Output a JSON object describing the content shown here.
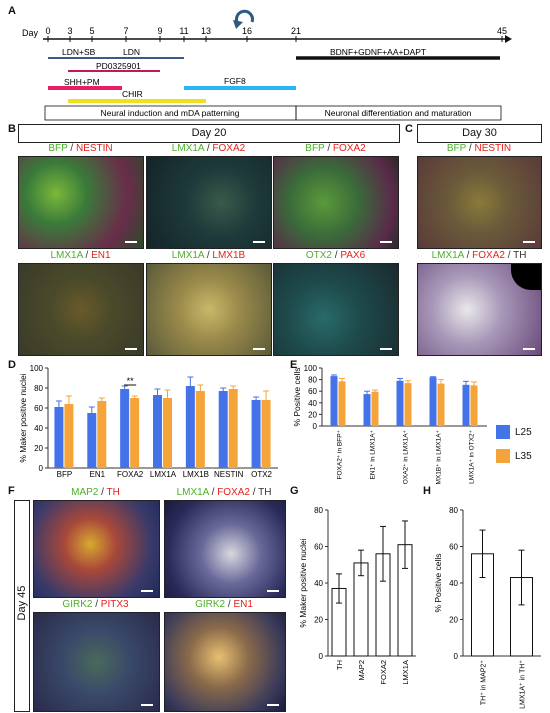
{
  "panel_letters": [
    "A",
    "B",
    "C",
    "D",
    "E",
    "F",
    "G",
    "H"
  ],
  "timeline": {
    "day_label": "Day",
    "days": [
      "0",
      "3",
      "5",
      "7",
      "9",
      "11",
      "13",
      "16",
      "21",
      "45"
    ],
    "bars": [
      {
        "label": "LDN+SB",
        "color": "#3a5a8a"
      },
      {
        "label": "LDN",
        "color": "#3a5a8a"
      },
      {
        "label": "PD0325901",
        "color": "#c2185b"
      },
      {
        "label": "SHH+PM",
        "color": "#e91e63"
      },
      {
        "label": "CHIR",
        "color": "#f0e020"
      },
      {
        "label": "FGF8",
        "color": "#29b6f6"
      },
      {
        "label": "BDNF+GDNF+AA+DAPT",
        "color": "#111111"
      }
    ],
    "phase1": "Neural induction and mDA patterning",
    "phase2": "Neuronal differentiation and maturation"
  },
  "panel_b": {
    "header": "Day 20",
    "images": [
      {
        "parts": [
          {
            "t": "BFP",
            "c": "g"
          },
          {
            "t": " / ",
            "c": "k"
          },
          {
            "t": "NESTIN",
            "c": "r"
          }
        ]
      },
      {
        "parts": [
          {
            "t": "LMX1A",
            "c": "g"
          },
          {
            "t": " / ",
            "c": "k"
          },
          {
            "t": "FOXA2",
            "c": "r"
          }
        ]
      },
      {
        "parts": [
          {
            "t": "BFP",
            "c": "g"
          },
          {
            "t": " / ",
            "c": "k"
          },
          {
            "t": "FOXA2",
            "c": "r"
          }
        ]
      },
      {
        "parts": [
          {
            "t": "LMX1A",
            "c": "g"
          },
          {
            "t": " / ",
            "c": "k"
          },
          {
            "t": "EN1",
            "c": "r"
          }
        ]
      },
      {
        "parts": [
          {
            "t": "LMX1A",
            "c": "g"
          },
          {
            "t": " / ",
            "c": "k"
          },
          {
            "t": "LMX1B",
            "c": "r"
          }
        ]
      },
      {
        "parts": [
          {
            "t": "OTX2",
            "c": "g"
          },
          {
            "t": " / ",
            "c": "k"
          },
          {
            "t": "PAX6",
            "c": "r"
          }
        ]
      }
    ]
  },
  "panel_c": {
    "header": "Day 30",
    "images": [
      {
        "parts": [
          {
            "t": "BFP",
            "c": "g"
          },
          {
            "t": " / ",
            "c": "k"
          },
          {
            "t": "NESTIN",
            "c": "r"
          }
        ]
      },
      {
        "parts": [
          {
            "t": "LMX1A",
            "c": "g"
          },
          {
            "t": " / ",
            "c": "k"
          },
          {
            "t": "FOXA2",
            "c": "r"
          },
          {
            "t": " / TH",
            "c": "k"
          }
        ]
      }
    ]
  },
  "panel_f": {
    "side_label": "Day 45",
    "images": [
      {
        "parts": [
          {
            "t": "MAP2",
            "c": "g"
          },
          {
            "t": " / ",
            "c": "k"
          },
          {
            "t": "TH",
            "c": "r"
          }
        ]
      },
      {
        "parts": [
          {
            "t": "LMX1A",
            "c": "g"
          },
          {
            "t": " / ",
            "c": "k"
          },
          {
            "t": "FOXA2",
            "c": "r"
          },
          {
            "t": " / TH",
            "c": "k"
          }
        ]
      },
      {
        "parts": [
          {
            "t": "GIRK2",
            "c": "g"
          },
          {
            "t": " / ",
            "c": "k"
          },
          {
            "t": "PITX3",
            "c": "r"
          }
        ]
      },
      {
        "parts": [
          {
            "t": "GIRK2",
            "c": "g"
          },
          {
            "t": " / ",
            "c": "k"
          },
          {
            "t": "EN1",
            "c": "r"
          }
        ]
      }
    ]
  },
  "legend": [
    {
      "name": "L25",
      "color": "#4472e8"
    },
    {
      "name": "L35",
      "color": "#f5a43a"
    }
  ],
  "chart_data": [
    {
      "id": "D",
      "type": "bar",
      "ylabel": "% Maker positive nuclei",
      "ylim": [
        0,
        100
      ],
      "yticks": [
        "0",
        "20",
        "40",
        "60",
        "80",
        "100"
      ],
      "categories": [
        "BFP",
        "EN1",
        "FOXA2",
        "LMX1A",
        "LMX1B",
        "NESTIN",
        "OTX2"
      ],
      "series": [
        {
          "name": "L25",
          "values": [
            61,
            55,
            79,
            73,
            82,
            77,
            68
          ],
          "err": [
            6,
            6,
            3,
            6,
            9,
            3,
            3
          ]
        },
        {
          "name": "L35",
          "values": [
            64,
            67,
            70,
            70,
            77,
            79,
            68
          ],
          "err": [
            8,
            3,
            2,
            8,
            6,
            3,
            9
          ]
        }
      ],
      "annotation": {
        "text": "**",
        "category": "FOXA2"
      }
    },
    {
      "id": "E",
      "type": "bar",
      "ylabel": "% Positive cells",
      "ylim": [
        0,
        100
      ],
      "yticks": [
        "0",
        "20",
        "40",
        "60",
        "80",
        "100"
      ],
      "categories": [
        "FOXA2⁺ in BFP⁺",
        "EN1⁺ in LMX1A⁺",
        "FOXA2⁺ in LMX1A⁺",
        "LMX1B⁺ in LMX1A⁺",
        "LMX1A⁺ in OTX2⁺"
      ],
      "series": [
        {
          "name": "L25",
          "values": [
            86,
            55,
            78,
            84,
            71
          ],
          "err": [
            2,
            5,
            4,
            1,
            6
          ]
        },
        {
          "name": "L35",
          "values": [
            77,
            59,
            74,
            73,
            70
          ],
          "err": [
            5,
            3,
            4,
            7,
            6
          ]
        }
      ]
    },
    {
      "id": "G",
      "type": "bar",
      "ylabel": "% Maker positive nuclei",
      "ylim": [
        0,
        80
      ],
      "yticks": [
        "0",
        "20",
        "40",
        "60",
        "80"
      ],
      "categories": [
        "TH",
        "MAP2",
        "FOXA2",
        "LMX1A"
      ],
      "values": [
        37,
        51,
        56,
        61
      ],
      "err": [
        8,
        7,
        15,
        13
      ]
    },
    {
      "id": "H",
      "type": "bar",
      "ylabel": "% Positive cells",
      "ylim": [
        0,
        80
      ],
      "yticks": [
        "0",
        "20",
        "40",
        "60",
        "80"
      ],
      "categories": [
        "TH⁺ in MAP2⁺",
        "FOXA2⁺ LMX1A⁺ in TH⁺"
      ],
      "values": [
        56,
        43
      ],
      "err": [
        13,
        15
      ]
    }
  ]
}
